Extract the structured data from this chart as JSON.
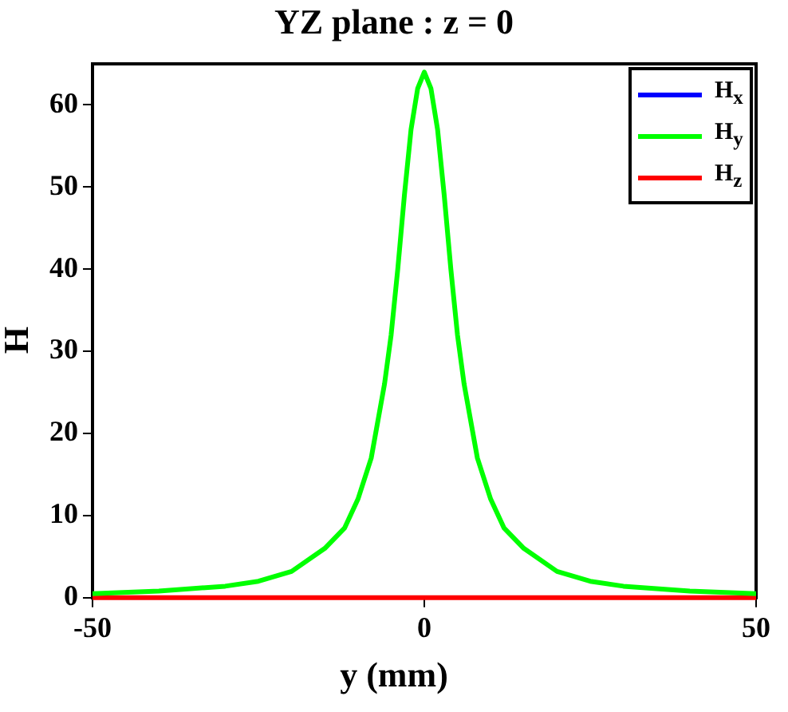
{
  "chart_data": {
    "type": "line",
    "title": "YZ plane : z = 0",
    "xlabel": "y (mm)",
    "ylabel": "H",
    "x": [
      -50,
      -40,
      -30,
      -25,
      -20,
      -15,
      -12,
      -10,
      -8,
      -6,
      -5,
      -4,
      -3,
      -2,
      -1,
      0,
      1,
      2,
      3,
      4,
      5,
      6,
      8,
      10,
      12,
      15,
      20,
      25,
      30,
      40,
      50
    ],
    "series": [
      {
        "name": "H$_{x}$",
        "color": "#0000ff",
        "values": [
          null,
          null,
          null,
          null,
          null,
          null,
          null,
          null,
          null,
          null,
          null,
          null,
          null,
          null,
          null,
          null,
          null,
          null,
          null,
          null,
          null,
          null,
          null,
          null,
          null,
          null,
          null,
          null,
          null,
          null,
          null
        ]
      },
      {
        "name": "H$_{y}$",
        "color": "#00ff00",
        "values": [
          0.5,
          0.8,
          1.4,
          2,
          3.2,
          6,
          8.5,
          12,
          17,
          26,
          32,
          40,
          49,
          57,
          62,
          64,
          62,
          57,
          49,
          40,
          32,
          26,
          17,
          12,
          8.5,
          6,
          3.2,
          2,
          1.4,
          0.8,
          0.5
        ]
      },
      {
        "name": "H$_{z}$",
        "color": "#ff0000",
        "values": [
          0,
          0,
          0,
          0,
          0,
          0,
          0,
          0,
          0,
          0,
          0,
          0,
          0,
          0,
          0,
          0,
          0,
          0,
          0,
          0,
          0,
          0,
          0,
          0,
          0,
          0,
          0,
          0,
          0,
          0,
          0
        ]
      }
    ],
    "xlim": [
      -50,
      50
    ],
    "xticks": [
      -50,
      0,
      50
    ],
    "ylim": [
      0,
      65
    ],
    "yticks": [
      0,
      10,
      20,
      30,
      40,
      50,
      60
    ],
    "grid": false,
    "legend": "top right",
    "marker": "none",
    "line_style": "solid"
  }
}
